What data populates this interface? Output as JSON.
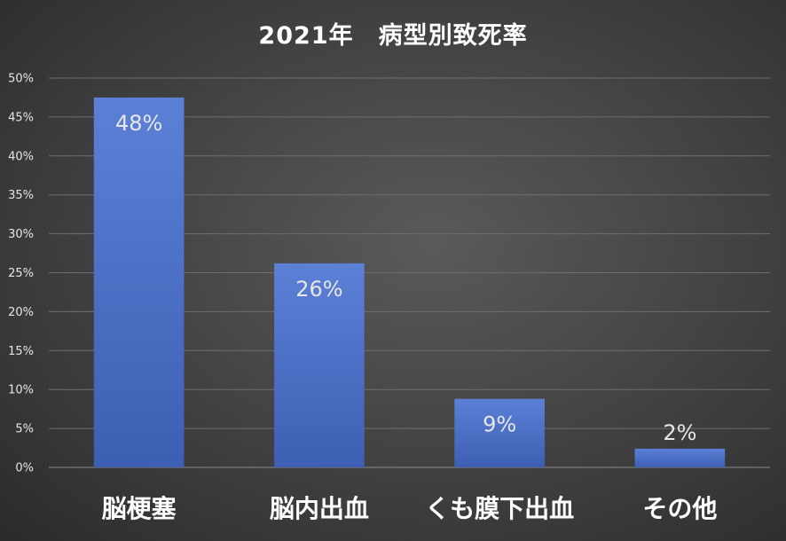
{
  "chart_data": {
    "type": "bar",
    "title": "2021年　病型別致死率",
    "categories": [
      "脳梗塞",
      "脳内出血",
      "くも膜下出血",
      "その他"
    ],
    "values": [
      0.475,
      0.262,
      0.088,
      0.024
    ],
    "data_labels": [
      "48%",
      "26%",
      "9%",
      "2%"
    ],
    "y_ticks": [
      "0%",
      "5%",
      "10%",
      "15%",
      "20%",
      "25%",
      "30%",
      "35%",
      "40%",
      "45%",
      "50%"
    ],
    "ylim": [
      0,
      0.5
    ],
    "xlabel": "",
    "ylabel": "",
    "grid": true,
    "legend": false,
    "bar_color": "#4a6fc7",
    "bar_color_top": "#5b80d6",
    "bar_color_bottom": "#3d5fb3"
  }
}
